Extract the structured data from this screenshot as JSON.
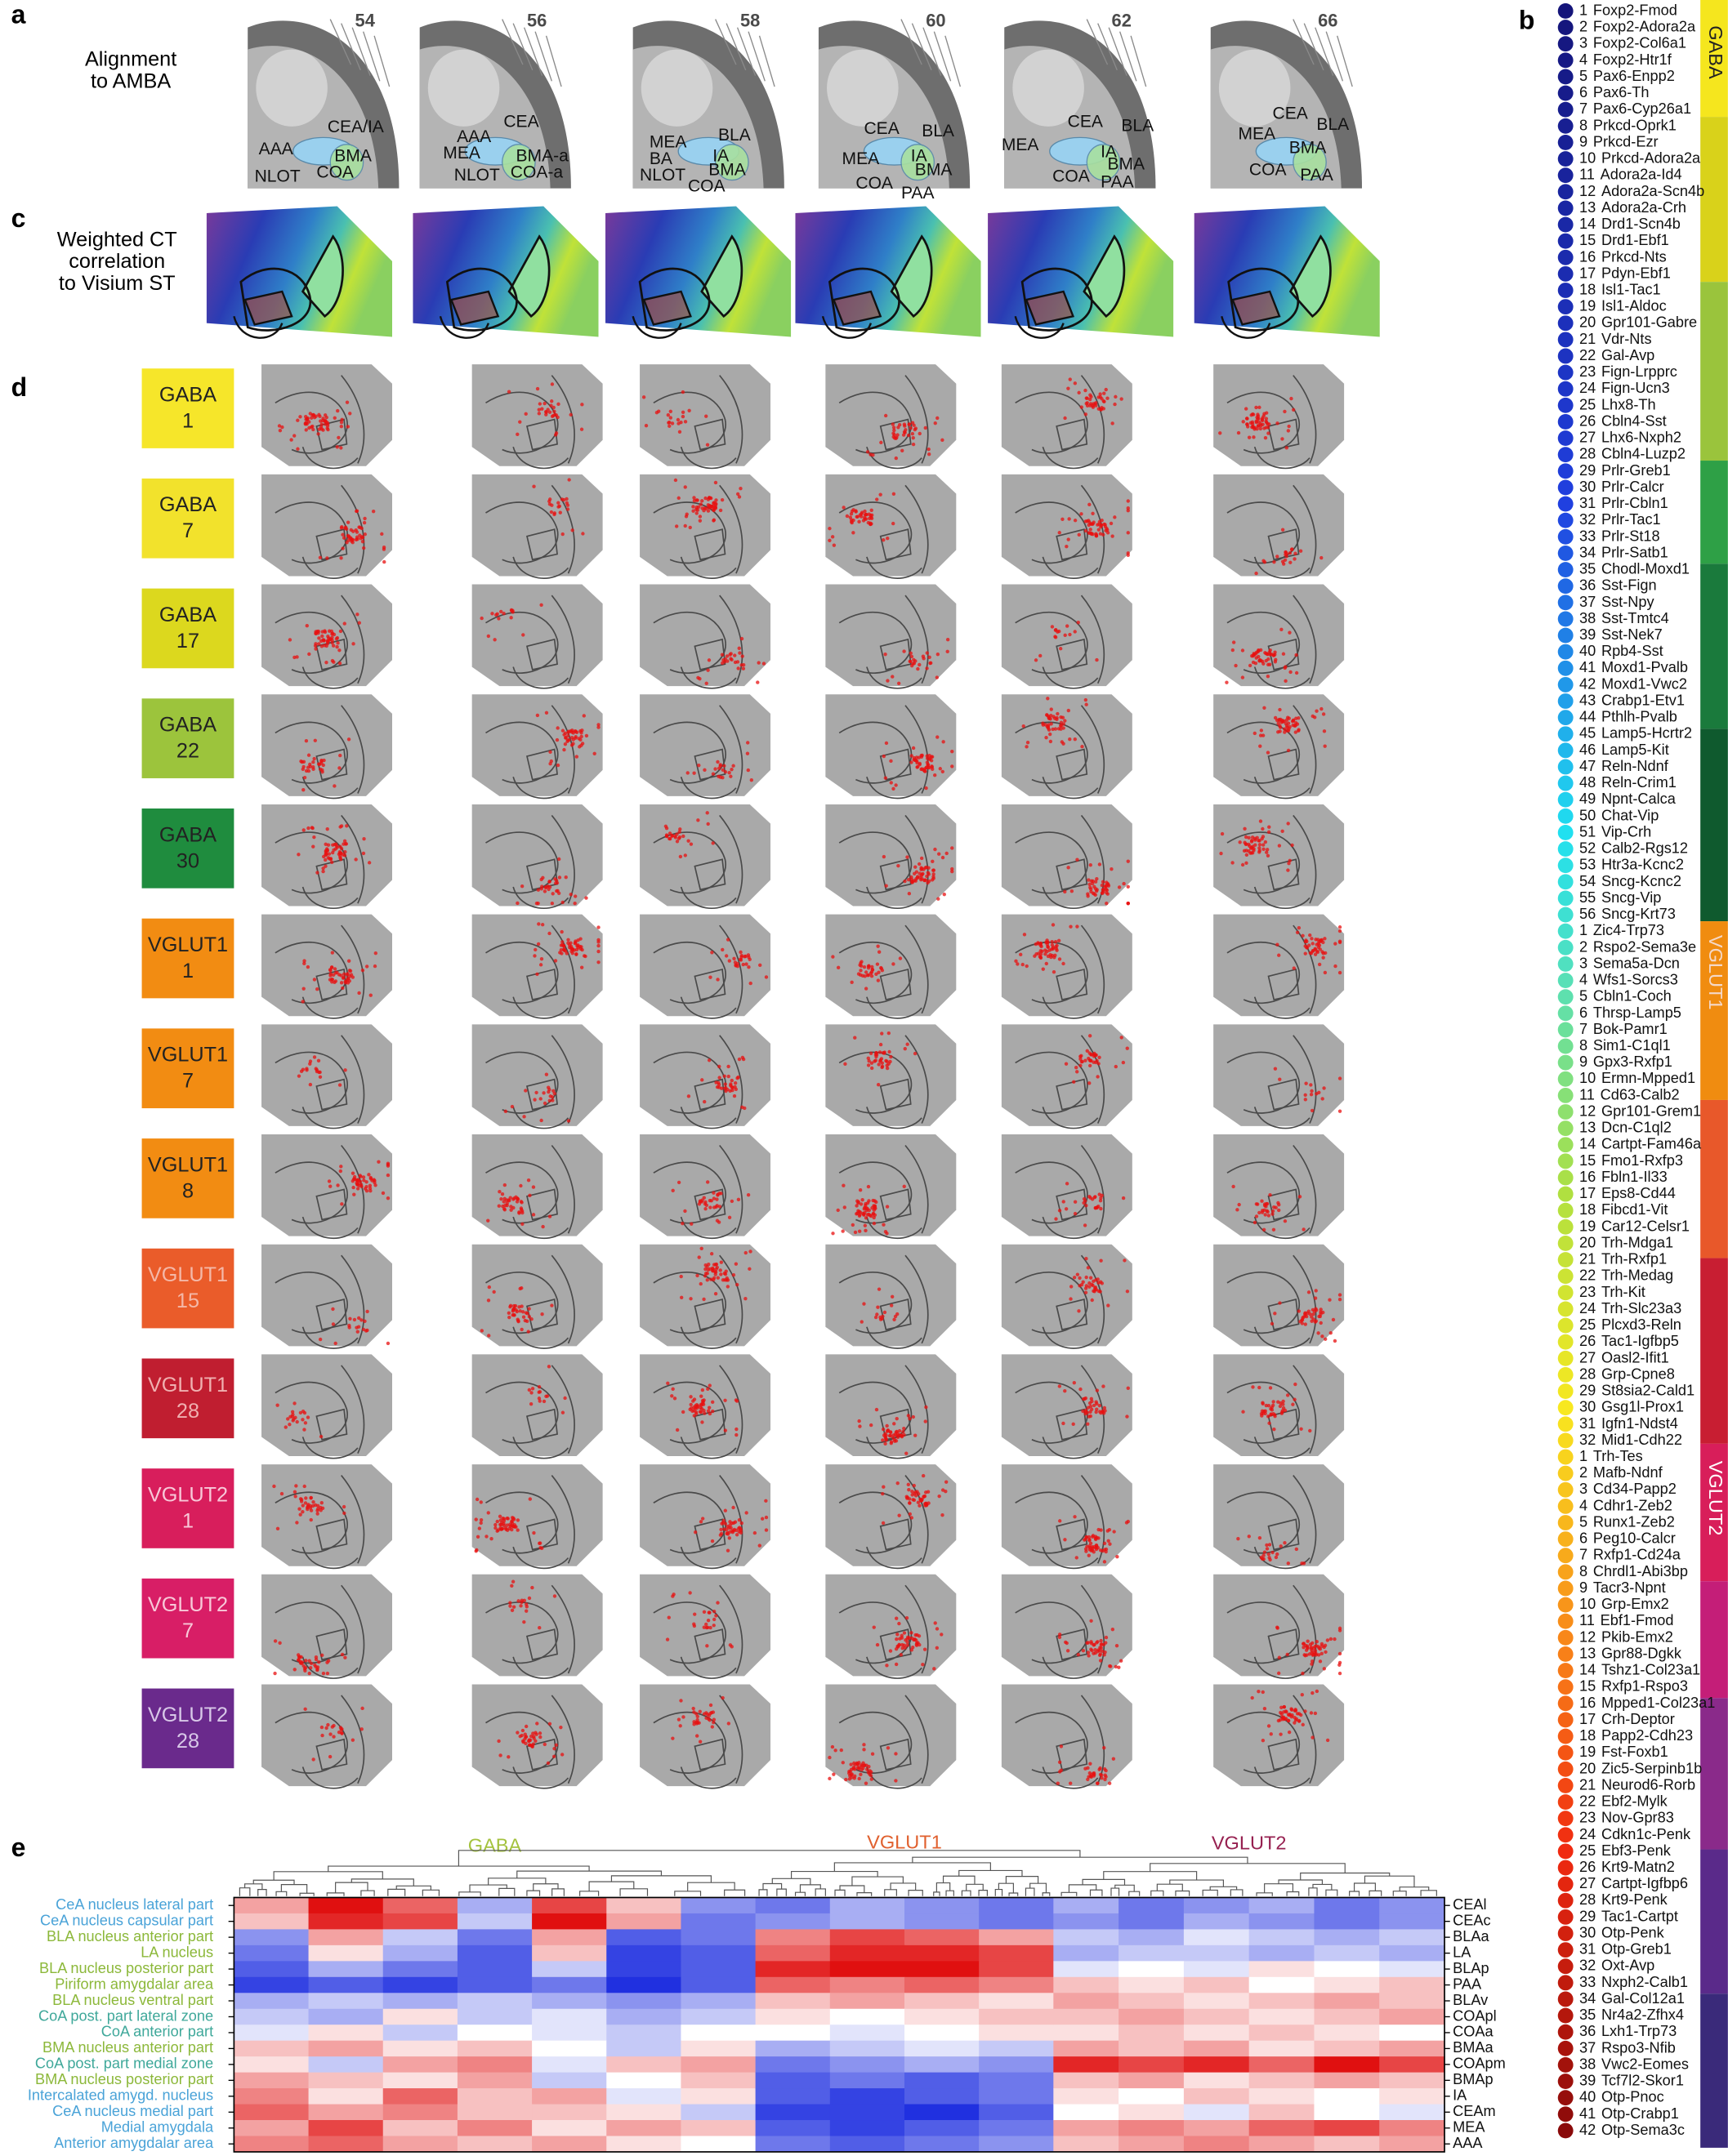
{
  "panels": [
    "a",
    "b",
    "c",
    "d",
    "e"
  ],
  "alignment": {
    "label": [
      "Alignment",
      "to AMBA"
    ],
    "sections": [
      {
        "number": "54",
        "regions": [
          "AAA",
          "CEA/IA",
          "BMA",
          "NLOT",
          "COA"
        ]
      },
      {
        "number": "56",
        "regions": [
          "AAA",
          "CEA",
          "MEA",
          "BMA-a",
          "NLOT",
          "COA-a"
        ]
      },
      {
        "number": "58",
        "regions": [
          "MEA",
          "BLA",
          "BA",
          "IA",
          "BMA",
          "NLOT",
          "COA"
        ]
      },
      {
        "number": "60",
        "regions": [
          "CEA",
          "BLA",
          "MEA",
          "IA",
          "BMA",
          "COA",
          "PAA"
        ]
      },
      {
        "number": "62",
        "regions": [
          "MEA",
          "CEA",
          "BLA",
          "IA",
          "BMA",
          "COA",
          "PAA"
        ]
      },
      {
        "number": "66",
        "regions": [
          "CEA",
          "BLA",
          "MEA",
          "BMA",
          "COA",
          "PAA"
        ]
      }
    ]
  },
  "correlation_label": [
    "Weighted CT",
    "correlation",
    "to Visium ST"
  ],
  "cell_types": [
    {
      "group": "GABA",
      "number": "1",
      "color": "#f6e62a",
      "text_color": "#222"
    },
    {
      "group": "GABA",
      "number": "7",
      "color": "#f2e22c",
      "text_color": "#222"
    },
    {
      "group": "GABA",
      "number": "17",
      "color": "#dcd81e",
      "text_color": "#222"
    },
    {
      "group": "GABA",
      "number": "22",
      "color": "#9cc43c",
      "text_color": "#222"
    },
    {
      "group": "GABA",
      "number": "30",
      "color": "#1f8c3e",
      "text_color": "#222"
    },
    {
      "group": "VGLUT1",
      "number": "1",
      "color": "#f28c12",
      "text_color": "#222"
    },
    {
      "group": "VGLUT1",
      "number": "7",
      "color": "#f28c12",
      "text_color": "#222"
    },
    {
      "group": "VGLUT1",
      "number": "8",
      "color": "#f28c12",
      "text_color": "#222"
    },
    {
      "group": "VGLUT1",
      "number": "15",
      "color": "#ea5c2a",
      "text_color": "#f4b8a8"
    },
    {
      "group": "VGLUT1",
      "number": "28",
      "color": "#c01e30",
      "text_color": "#f0b0b0"
    },
    {
      "group": "VGLUT2",
      "number": "1",
      "color": "#d81e5c",
      "text_color": "#f8c8d8"
    },
    {
      "group": "VGLUT2",
      "number": "7",
      "color": "#d81e66",
      "text_color": "#f8c8d8"
    },
    {
      "group": "VGLUT2",
      "number": "28",
      "color": "#6a2a8c",
      "text_color": "#d8c8e8"
    }
  ],
  "legend": {
    "groups": [
      {
        "name": "GABA",
        "items": [
          [
            1,
            "Foxp2-Fmod"
          ],
          [
            2,
            "Foxp2-Adora2a"
          ],
          [
            3,
            "Foxp2-Col6a1"
          ],
          [
            4,
            "Foxp2-Htr1f"
          ],
          [
            5,
            "Pax6-Enpp2"
          ],
          [
            6,
            "Pax6-Th"
          ],
          [
            7,
            "Pax6-Cyp26a1"
          ],
          [
            8,
            "Prkcd-Oprk1"
          ],
          [
            9,
            "Prkcd-Ezr"
          ],
          [
            10,
            "Prkcd-Adora2a"
          ],
          [
            11,
            "Adora2a-Id4"
          ],
          [
            12,
            "Adora2a-Scn4b"
          ],
          [
            13,
            "Adora2a-Crh"
          ],
          [
            14,
            "Drd1-Scn4b"
          ],
          [
            15,
            "Drd1-Ebf1"
          ],
          [
            16,
            "Prkcd-Nts"
          ],
          [
            17,
            "Pdyn-Ebf1"
          ],
          [
            18,
            "Isl1-Tac1"
          ],
          [
            19,
            "Isl1-Aldoc"
          ],
          [
            20,
            "Gpr101-Gabre"
          ],
          [
            21,
            "Vdr-Nts"
          ],
          [
            22,
            "Gal-Avp"
          ],
          [
            23,
            "Fign-Lrpprc"
          ],
          [
            24,
            "Fign-Ucn3"
          ],
          [
            25,
            "Lhx8-Th"
          ],
          [
            26,
            "Cbln4-Sst"
          ],
          [
            27,
            "Lhx6-Nxph2"
          ],
          [
            28,
            "Cbln4-Luzp2"
          ],
          [
            29,
            "Prlr-Greb1"
          ],
          [
            30,
            "Prlr-Calcr"
          ],
          [
            31,
            "Prlr-Cbln1"
          ],
          [
            32,
            "Prlr-Tac1"
          ],
          [
            33,
            "Prlr-St18"
          ],
          [
            34,
            "Prlr-Satb1"
          ],
          [
            35,
            "Chodl-Moxd1"
          ],
          [
            36,
            "Sst-Fign"
          ],
          [
            37,
            "Sst-Npy"
          ],
          [
            38,
            "Sst-Tmtc4"
          ],
          [
            39,
            "Sst-Nek7"
          ],
          [
            40,
            "Rpb4-Sst"
          ],
          [
            41,
            "Moxd1-Pvalb"
          ],
          [
            42,
            "Moxd1-Vwc2"
          ],
          [
            43,
            "Crabp1-Etv1"
          ],
          [
            44,
            "Pthlh-Pvalb"
          ],
          [
            45,
            "Lamp5-Hcrtr2"
          ],
          [
            46,
            "Lamp5-Kit"
          ],
          [
            47,
            "Reln-Ndnf"
          ],
          [
            48,
            "Reln-Crim1"
          ],
          [
            49,
            "Npnt-Calca"
          ],
          [
            50,
            "Chat-Vip"
          ],
          [
            51,
            "Vip-Crh"
          ],
          [
            52,
            "Calb2-Rgs12"
          ],
          [
            53,
            "Htr3a-Kcnc2"
          ],
          [
            54,
            "Sncg-Kcnc2"
          ],
          [
            55,
            "Sncg-Vip"
          ],
          [
            56,
            "Sncg-Krt73"
          ]
        ]
      },
      {
        "name": "VGLUT1",
        "items": [
          [
            1,
            "Zic4-Trp73"
          ],
          [
            2,
            "Rspo2-Sema3e"
          ],
          [
            3,
            "Sema5a-Dcn"
          ],
          [
            4,
            "Wfs1-Sorcs3"
          ],
          [
            5,
            "Cbln1-Coch"
          ],
          [
            6,
            "Thrsp-Lamp5"
          ],
          [
            7,
            "Bok-Pamr1"
          ],
          [
            8,
            "Sim1-C1ql1"
          ],
          [
            9,
            "Gpx3-Rxfp1"
          ],
          [
            10,
            "Ermn-Mpped1"
          ],
          [
            11,
            "Cd63-Calb2"
          ],
          [
            12,
            "Gpr101-Grem1"
          ],
          [
            13,
            "Dcn-C1ql2"
          ],
          [
            14,
            "Cartpt-Fam46a"
          ],
          [
            15,
            "Fmo1-Rxfp3"
          ],
          [
            16,
            "Fbln1-Il33"
          ],
          [
            17,
            "Eps8-Cd44"
          ],
          [
            18,
            "Fibcd1-Vit"
          ],
          [
            19,
            "Car12-Celsr1"
          ],
          [
            20,
            "Trh-Mdga1"
          ],
          [
            21,
            "Trh-Rxfp1"
          ],
          [
            22,
            "Trh-Medag"
          ],
          [
            23,
            "Trh-Kit"
          ],
          [
            24,
            "Trh-Slc23a3"
          ],
          [
            25,
            "Plcxd3-Reln"
          ],
          [
            26,
            "Tac1-Igfbp5"
          ],
          [
            27,
            "Oasl2-Ifit1"
          ],
          [
            28,
            "Grp-Cpne8"
          ],
          [
            29,
            "St8sia2-Cald1"
          ],
          [
            30,
            "Gsg1l-Prox1"
          ],
          [
            31,
            "Igfn1-Ndst4"
          ],
          [
            32,
            "Mid1-Cdh22"
          ]
        ]
      },
      {
        "name": "VGLUT2",
        "items": [
          [
            1,
            "Trh-Tes"
          ],
          [
            2,
            "Mafb-Ndnf"
          ],
          [
            3,
            "Cd34-Papp2"
          ],
          [
            4,
            "Cdhr1-Zeb2"
          ],
          [
            5,
            "Runx1-Zeb2"
          ],
          [
            6,
            "Peg10-Calcr"
          ],
          [
            7,
            "Rxfp1-Cd24a"
          ],
          [
            8,
            "Chrdl1-Abi3bp"
          ],
          [
            9,
            "Tacr3-Npnt"
          ],
          [
            10,
            "Grp-Emx2"
          ],
          [
            11,
            "Ebf1-Fmod"
          ],
          [
            12,
            "Pkib-Emx2"
          ],
          [
            13,
            "Gpr88-Dgkk"
          ],
          [
            14,
            "Tshz1-Col23a1"
          ],
          [
            15,
            "Rxfp1-Rspo3"
          ],
          [
            16,
            "Mpped1-Col23a1"
          ],
          [
            17,
            "Crh-Deptor"
          ],
          [
            18,
            "Papp2-Cdh23"
          ],
          [
            19,
            "Fst-Foxb1"
          ],
          [
            20,
            "Zic5-Serpinb1b"
          ],
          [
            21,
            "Neurod6-Rorb"
          ],
          [
            22,
            "Ebf2-Mylk"
          ],
          [
            23,
            "Nov-Gpr83"
          ],
          [
            24,
            "Cdkn1c-Penk"
          ],
          [
            25,
            "Ebf3-Penk"
          ],
          [
            26,
            "Krt9-Matn2"
          ],
          [
            27,
            "Cartpt-Igfbp6"
          ],
          [
            28,
            "Krt9-Penk"
          ],
          [
            29,
            "Tac1-Cartpt"
          ],
          [
            30,
            "Otp-Penk"
          ],
          [
            31,
            "Otp-Greb1"
          ],
          [
            32,
            "Oxt-Avp"
          ],
          [
            33,
            "Nxph2-Calb1"
          ],
          [
            34,
            "Gal-Col12a1"
          ],
          [
            35,
            "Nr4a2-Zfhx4"
          ],
          [
            36,
            "Lxh1-Trp73"
          ],
          [
            37,
            "Rspo3-Nfib"
          ],
          [
            38,
            "Vwc2-Eomes"
          ],
          [
            39,
            "Tcf7l2-Skor1"
          ],
          [
            40,
            "Otp-Pnoc"
          ],
          [
            41,
            "Otp-Crabp1"
          ],
          [
            42,
            "Otp-Sema3c"
          ]
        ]
      }
    ]
  },
  "heatmap": {
    "clim": [
      -1,
      1
    ],
    "rows": [
      "CeA nucleus lateral part",
      "CeA nucleus capsular part",
      "BLA nucleus anterior part",
      "LA nucleus",
      "BLA nucleus posterior part",
      "Piriform amygdalar area",
      "BLA nucleus ventral part",
      "CoA post. part lateral zone",
      "CoA anterior part",
      "BMA nucleus anterior part",
      "CoA post. part medial zone",
      "BMA nucleus posterior part",
      "Intercalated amygd. nucleus",
      "CeA nucleus medial part",
      "Medial amygdala",
      "Anterior amygdalar area"
    ],
    "row_colors": [
      "#4aa3d8",
      "#4aa3d8",
      "#8cb83a",
      "#8cb83a",
      "#8cb83a",
      "#8cb83a",
      "#8cb83a",
      "#3fa89a",
      "#3fa89a",
      "#8cb83a",
      "#3fa89a",
      "#8cb83a",
      "#4aa3d8",
      "#4aa3d8",
      "#4aa3d8",
      "#4aa3d8"
    ],
    "row_abbrevs": [
      "CEAl",
      "CEAc",
      "BLAa",
      "LA",
      "BLAp",
      "PAA",
      "BLAv",
      "COApl",
      "COAa",
      "BMAa",
      "COApm",
      "BMAp",
      "IA",
      "CEAm",
      "MEA",
      "AAA"
    ],
    "groups": [
      {
        "name": "GABA",
        "color": "#a4c23e",
        "values": [
          [
            0.3,
            0.8,
            0.5,
            -0.3,
            0.6,
            0.2,
            -0.4
          ],
          [
            0.2,
            0.7,
            0.6,
            -0.2,
            0.8,
            0.3,
            -0.5
          ],
          [
            -0.4,
            0.3,
            -0.2,
            -0.5,
            0.3,
            -0.6,
            -0.5
          ],
          [
            -0.5,
            0.1,
            -0.3,
            -0.6,
            0.2,
            -0.7,
            -0.6
          ],
          [
            -0.6,
            -0.3,
            -0.5,
            -0.6,
            -0.2,
            -0.7,
            -0.6
          ],
          [
            -0.7,
            -0.6,
            -0.7,
            -0.6,
            -0.5,
            -0.8,
            -0.6
          ],
          [
            -0.3,
            -0.2,
            -0.3,
            -0.2,
            -0.3,
            -0.4,
            -0.3
          ],
          [
            -0.2,
            -0.3,
            0.1,
            -0.2,
            -0.1,
            -0.3,
            -0.2
          ],
          [
            -0.1,
            0.1,
            -0.2,
            0,
            -0.1,
            -0.2,
            0
          ],
          [
            0.2,
            0.3,
            0.1,
            0.2,
            0,
            -0.2,
            0.1
          ],
          [
            0.1,
            -0.2,
            0.3,
            0.4,
            -0.1,
            0.2,
            0.3
          ],
          [
            0.3,
            0.2,
            0.1,
            0.3,
            -0.2,
            0,
            0.2
          ],
          [
            0.4,
            0.1,
            0.5,
            0.2,
            0.3,
            -0.1,
            0.1
          ],
          [
            0.5,
            0.3,
            0.4,
            0.2,
            0.2,
            0.1,
            -0.2
          ],
          [
            0.3,
            0.6,
            0.2,
            0.4,
            0.1,
            0.3,
            0.2
          ],
          [
            0.4,
            0.5,
            0.3,
            0.2,
            0.3,
            0.1,
            0
          ]
        ]
      },
      {
        "name": "VGLUT1",
        "color": "#e0602e",
        "values": [
          [
            -0.5,
            -0.3,
            -0.4,
            -0.5
          ],
          [
            -0.4,
            -0.3,
            -0.4,
            -0.5
          ],
          [
            0.4,
            0.6,
            0.5,
            0.3
          ],
          [
            0.5,
            0.7,
            0.7,
            0.6
          ],
          [
            0.7,
            0.8,
            0.8,
            0.6
          ],
          [
            0.5,
            0.4,
            0.5,
            0.4
          ],
          [
            0.2,
            0.3,
            0.2,
            0.1
          ],
          [
            0.1,
            0,
            0.1,
            0.2
          ],
          [
            0,
            -0.1,
            0,
            0.1
          ],
          [
            -0.3,
            -0.2,
            -0.1,
            -0.2
          ],
          [
            -0.5,
            -0.4,
            -0.3,
            -0.4
          ],
          [
            -0.6,
            -0.5,
            -0.6,
            -0.5
          ],
          [
            -0.6,
            -0.7,
            -0.6,
            -0.5
          ],
          [
            -0.7,
            -0.7,
            -0.8,
            -0.6
          ],
          [
            -0.6,
            -0.7,
            -0.6,
            -0.5
          ],
          [
            -0.5,
            -0.6,
            -0.5,
            -0.4
          ]
        ]
      },
      {
        "name": "VGLUT2",
        "color": "#962050",
        "values": [
          [
            -0.3,
            -0.5,
            -0.4,
            -0.3,
            -0.5,
            -0.4
          ],
          [
            -0.4,
            -0.5,
            -0.3,
            -0.4,
            -0.5,
            -0.4
          ],
          [
            -0.2,
            -0.3,
            -0.1,
            -0.2,
            -0.3,
            -0.2
          ],
          [
            -0.3,
            -0.2,
            -0.2,
            -0.3,
            -0.2,
            -0.3
          ],
          [
            -0.1,
            0,
            -0.1,
            0.1,
            0,
            -0.1
          ],
          [
            0.2,
            0.1,
            0.2,
            0,
            0.1,
            0.2
          ],
          [
            0.3,
            0.2,
            0.1,
            0.2,
            0.3,
            0.2
          ],
          [
            0.2,
            0.3,
            0.2,
            0.1,
            0.2,
            0.3
          ],
          [
            0.1,
            0.2,
            0.1,
            0.2,
            0.1,
            0
          ],
          [
            0.3,
            0.2,
            0.3,
            0.1,
            0.2,
            0.3
          ],
          [
            0.7,
            0.6,
            0.7,
            0.5,
            0.8,
            0.6
          ],
          [
            0.2,
            0.3,
            0.1,
            0.2,
            0.3,
            0.2
          ],
          [
            0.1,
            0,
            0.2,
            0.1,
            0,
            0.1
          ],
          [
            0,
            0.1,
            -0.1,
            0.2,
            0,
            -0.1
          ],
          [
            0.3,
            0.4,
            0.3,
            0.5,
            0.6,
            0.4
          ],
          [
            0.2,
            0.3,
            0.4,
            0.3,
            0.2,
            0.3
          ]
        ]
      }
    ]
  }
}
